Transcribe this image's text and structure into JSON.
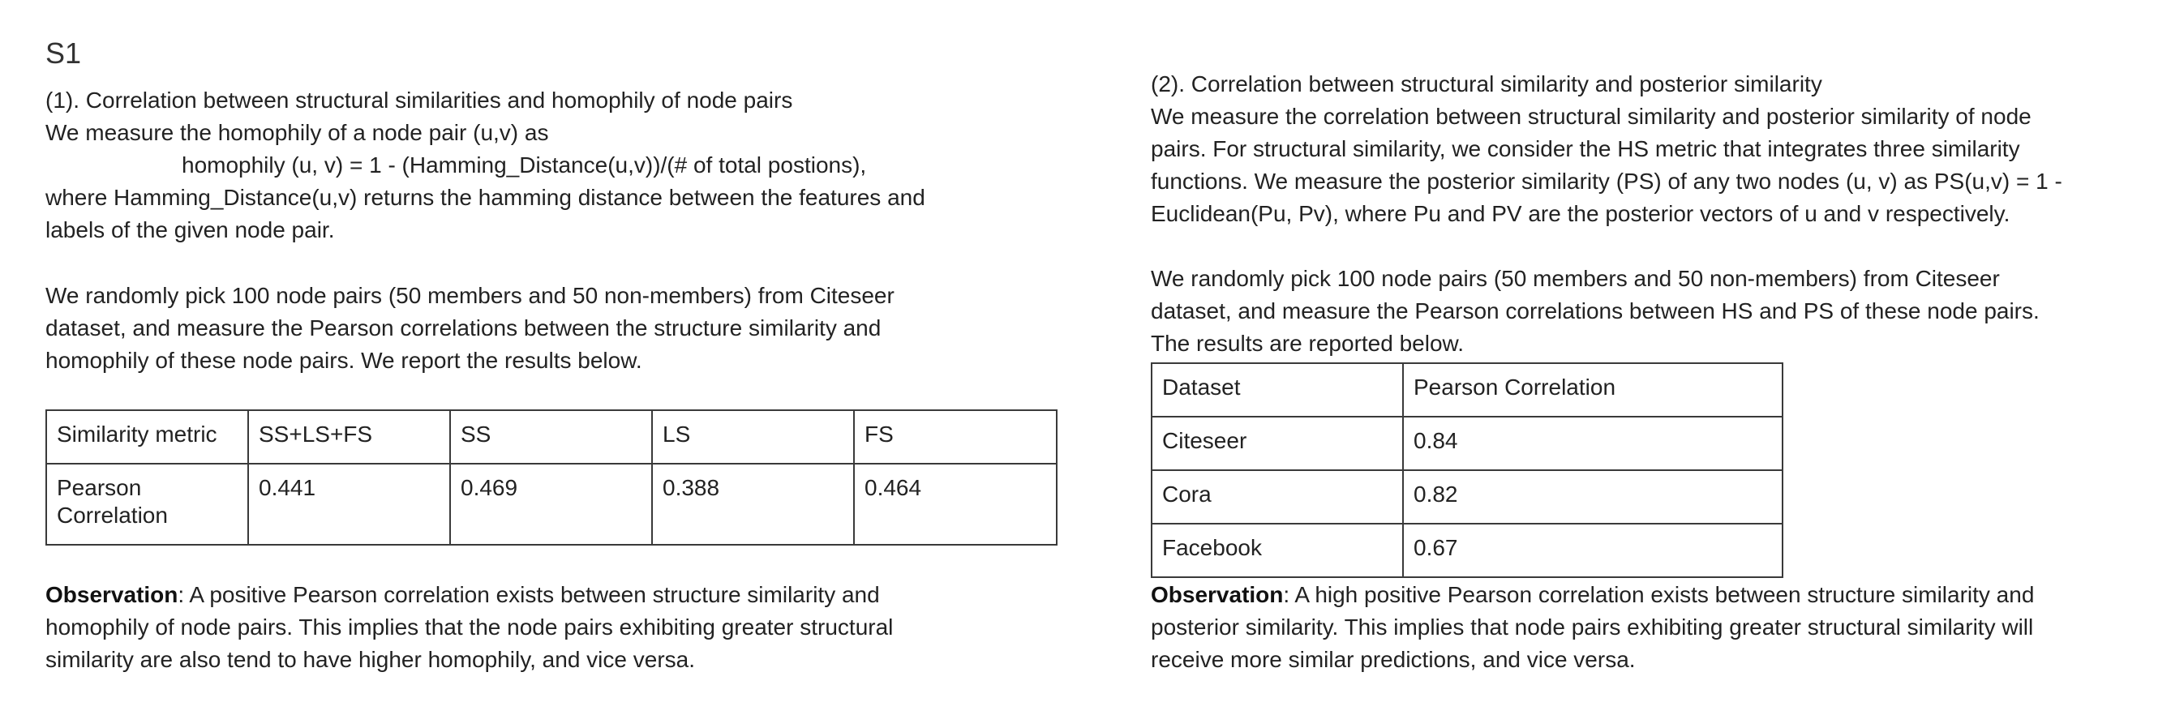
{
  "title": "S1",
  "left": {
    "heading": "(1). Correlation between structural similarities and homophily of node pairs",
    "intro": "We measure the homophily of a node pair (u,v) as",
    "formula": "homophily (u, v) = 1 - (Hamming_Distance(u,v))/(# of total postions),",
    "where_1": "where Hamming_Distance(u,v) returns the hamming distance between the features and",
    "where_2": "labels of the given node pair.",
    "para_1": "We randomly pick 100 node pairs (50 members and 50 non-members) from Citeseer",
    "para_2": "dataset, and measure the Pearson correlations between the structure similarity and",
    "para_3": "homophily of these node pairs. We report the results below.",
    "table": {
      "header": [
        "Similarity metric",
        "SS+LS+FS",
        "SS",
        "LS",
        "FS"
      ],
      "row_label_1": "Pearson",
      "row_label_2": "Correlation",
      "values": [
        "0.441",
        "0.469",
        "0.388",
        "0.464"
      ]
    },
    "obs_label": "Observation",
    "obs_1": ": A positive Pearson correlation exists between structure similarity and",
    "obs_2": "homophily of node pairs. This implies that the node pairs exhibiting greater structural",
    "obs_3": "similarity are also tend to have higher homophily, and vice versa."
  },
  "right": {
    "heading": "(2). Correlation between structural similarity and posterior similarity",
    "p1": "We measure the correlation between structural similarity and posterior similarity of node",
    "p2": "pairs. For structural similarity, we consider the HS metric that integrates three similarity",
    "p3": "functions. We measure the posterior similarity (PS) of any two nodes (u, v) as PS(u,v) = 1 -",
    "p4": "Euclidean(Pu, Pv), where Pu and PV are the posterior vectors of u and v respectively.",
    "q1": "We randomly pick 100 node pairs (50 members and 50 non-members) from Citeseer",
    "q2": "dataset, and measure the Pearson correlations between HS and PS of these node pairs.",
    "q3": "The results are reported below.",
    "table": {
      "header": [
        "Dataset",
        "Pearson Correlation"
      ],
      "rows": [
        [
          "Citeseer",
          "0.84"
        ],
        [
          "Cora",
          "0.82"
        ],
        [
          "Facebook",
          "0.67"
        ]
      ]
    },
    "obs_label": "Observation",
    "obs_1": ": A high positive Pearson correlation exists between structure similarity and",
    "obs_2": "posterior similarity. This implies that node pairs exhibiting greater structural similarity will",
    "obs_3": "receive more similar predictions, and vice versa."
  }
}
